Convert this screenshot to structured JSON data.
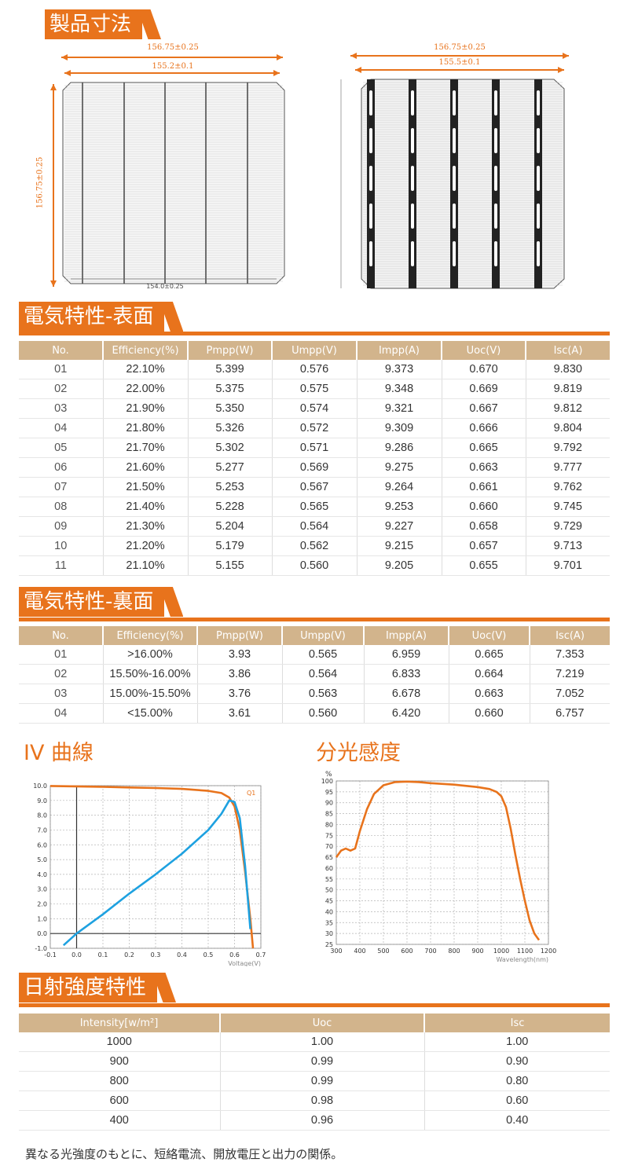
{
  "sections": {
    "dimensions": "製品寸法",
    "electrical_front": "電気特性-表面",
    "electrical_back": "電気特性-裏面",
    "iv_curve": "IV 曲線",
    "spectral": "分光感度",
    "irradiance": "日射強度特性"
  },
  "drawing_left": {
    "outer_dim": "156.75±0.25",
    "inner_dim": "155.2±0.1",
    "side_dim": "156.75±0.25"
  },
  "drawing_right": {
    "outer_dim": "156.75±0.25",
    "inner_dim": "155.5±0.1"
  },
  "front_table": {
    "headers": [
      "No.",
      "Efficiency(%)",
      "Pmpp(W)",
      "Umpp(V)",
      "Impp(A)",
      "Uoc(V)",
      "Isc(A)"
    ],
    "rows": [
      [
        "01",
        "22.10%",
        "5.399",
        "0.576",
        "9.373",
        "0.670",
        "9.830"
      ],
      [
        "02",
        "22.00%",
        "5.375",
        "0.575",
        "9.348",
        "0.669",
        "9.819"
      ],
      [
        "03",
        "21.90%",
        "5.350",
        "0.574",
        "9.321",
        "0.667",
        "9.812"
      ],
      [
        "04",
        "21.80%",
        "5.326",
        "0.572",
        "9.309",
        "0.666",
        "9.804"
      ],
      [
        "05",
        "21.70%",
        "5.302",
        "0.571",
        "9.286",
        "0.665",
        "9.792"
      ],
      [
        "06",
        "21.60%",
        "5.277",
        "0.569",
        "9.275",
        "0.663",
        "9.777"
      ],
      [
        "07",
        "21.50%",
        "5.253",
        "0.567",
        "9.264",
        "0.661",
        "9.762"
      ],
      [
        "08",
        "21.40%",
        "5.228",
        "0.565",
        "9.253",
        "0.660",
        "9.745"
      ],
      [
        "09",
        "21.30%",
        "5.204",
        "0.564",
        "9.227",
        "0.658",
        "9.729"
      ],
      [
        "10",
        "21.20%",
        "5.179",
        "0.562",
        "9.215",
        "0.657",
        "9.713"
      ],
      [
        "11",
        "21.10%",
        "5.155",
        "0.560",
        "9.205",
        "0.655",
        "9.701"
      ]
    ]
  },
  "back_table": {
    "headers": [
      "No.",
      "Efficiency(%)",
      "Pmpp(W)",
      "Umpp(V)",
      "Impp(A)",
      "Uoc(V)",
      "Isc(A)"
    ],
    "rows": [
      [
        "01",
        ">16.00%",
        "3.93",
        "0.565",
        "6.959",
        "0.665",
        "7.353"
      ],
      [
        "02",
        "15.50%-16.00%",
        "3.86",
        "0.564",
        "6.833",
        "0.664",
        "7.219"
      ],
      [
        "03",
        "15.00%-15.50%",
        "3.76",
        "0.563",
        "6.678",
        "0.663",
        "7.052"
      ],
      [
        "04",
        "<15.00%",
        "3.61",
        "0.560",
        "6.420",
        "0.660",
        "6.757"
      ]
    ]
  },
  "irradiance_table": {
    "headers": [
      "Intensity[w/m²]",
      "Uoc",
      "Isc"
    ],
    "rows": [
      [
        "1000",
        "1.00",
        "1.00"
      ],
      [
        "900",
        "0.99",
        "0.90"
      ],
      [
        "800",
        "0.99",
        "0.80"
      ],
      [
        "600",
        "0.98",
        "0.60"
      ],
      [
        "400",
        "0.96",
        "0.40"
      ]
    ]
  },
  "footnote": "異なる光強度のもとに、短絡電流、開放電圧と出力の関係。",
  "colors": {
    "accent": "#e8731c",
    "header": "#d2b48c",
    "blue": "#1ea1e0"
  },
  "chart_data": [
    {
      "type": "line",
      "title": "",
      "xlabel": "Voltage(V)",
      "ylabel": "",
      "xlim": [
        -0.1,
        0.7
      ],
      "ylim": [
        -1.0,
        10.0
      ],
      "xticks": [
        "-0.1",
        "0.0",
        "0.1",
        "0.2",
        "0.3",
        "0.4",
        "0.5",
        "0.6",
        "0.7"
      ],
      "yticks": [
        "-1.0",
        "0.0",
        "1.0",
        "2.0",
        "3.0",
        "4.0",
        "5.0",
        "6.0",
        "7.0",
        "8.0",
        "9.0",
        "10.0"
      ],
      "grid": true,
      "series": [
        {
          "name": "Q1",
          "color": "#e8731c",
          "x": [
            -0.1,
            0.0,
            0.1,
            0.2,
            0.3,
            0.4,
            0.5,
            0.55,
            0.58,
            0.6,
            0.62,
            0.64,
            0.66,
            0.67
          ],
          "y": [
            9.98,
            9.95,
            9.92,
            9.88,
            9.84,
            9.78,
            9.65,
            9.5,
            9.2,
            8.6,
            7.0,
            4.2,
            1.0,
            -1.0
          ]
        },
        {
          "name": "",
          "color": "#1ea1e0",
          "x": [
            -0.05,
            0.0,
            0.1,
            0.2,
            0.3,
            0.4,
            0.5,
            0.55,
            0.58,
            0.6,
            0.62,
            0.64,
            0.66
          ],
          "y": [
            -0.8,
            0.0,
            1.3,
            2.7,
            4.0,
            5.4,
            7.0,
            8.1,
            9.0,
            8.9,
            7.8,
            4.6,
            0.3
          ]
        }
      ]
    },
    {
      "type": "line",
      "title": "",
      "xlabel": "Wavelength(nm)",
      "ylabel": "%",
      "xlim": [
        300,
        1200
      ],
      "ylim": [
        25,
        100
      ],
      "xticks": [
        "300",
        "400",
        "500",
        "600",
        "700",
        "800",
        "900",
        "1000",
        "1100",
        "1200"
      ],
      "yticks": [
        "25",
        "30",
        "35",
        "40",
        "45",
        "50",
        "55",
        "60",
        "65",
        "70",
        "75",
        "80",
        "85",
        "90",
        "95",
        "100"
      ],
      "grid": true,
      "series": [
        {
          "name": "",
          "color": "#e8731c",
          "x": [
            300,
            320,
            340,
            360,
            380,
            400,
            430,
            460,
            500,
            550,
            600,
            650,
            700,
            800,
            900,
            950,
            980,
            1000,
            1020,
            1040,
            1060,
            1080,
            1100,
            1120,
            1140,
            1160
          ],
          "y": [
            65,
            68,
            69,
            68,
            69,
            77,
            87,
            94,
            98,
            99.5,
            99.7,
            99.5,
            99,
            98.3,
            97.2,
            96.3,
            95,
            93,
            88,
            78,
            66,
            55,
            45,
            36,
            30,
            27
          ]
        }
      ]
    }
  ]
}
